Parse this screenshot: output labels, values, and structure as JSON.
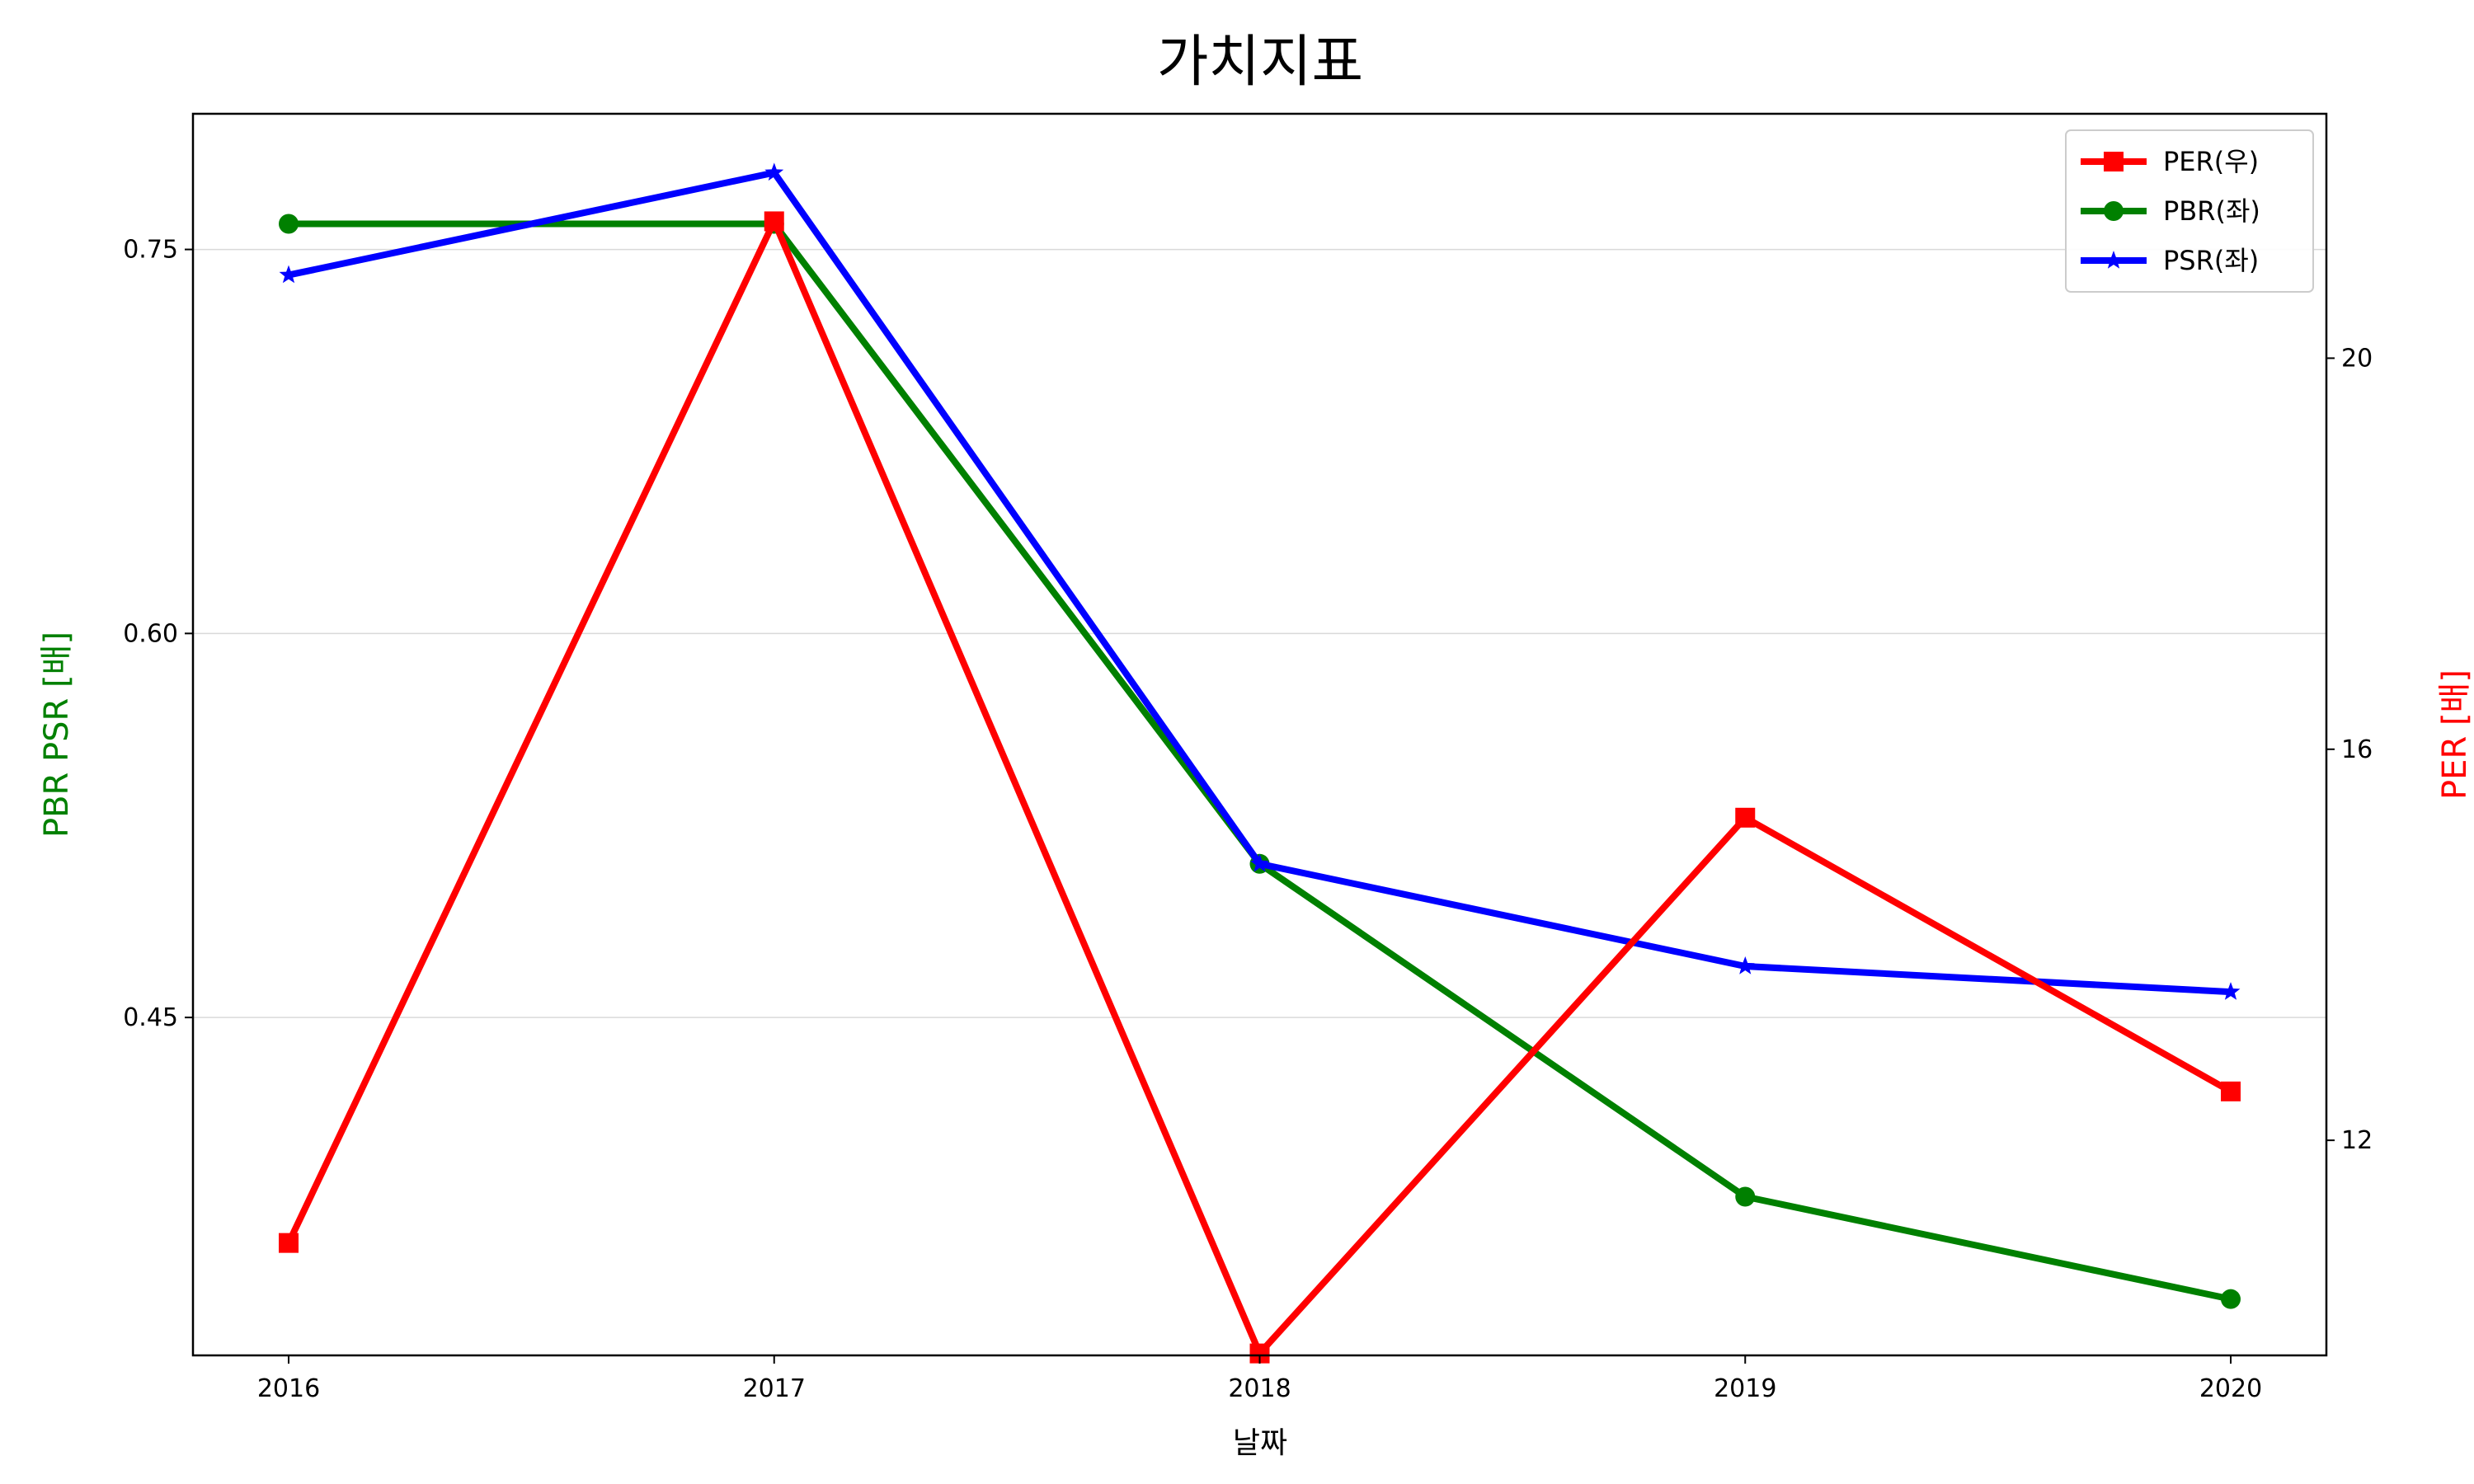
{
  "chart_data": {
    "type": "line",
    "title": "가치지표",
    "xlabel": "날짜",
    "ylabel_left": "PBR PSR [배]",
    "ylabel_right": "PER [배]",
    "categories": [
      "2016",
      "2017",
      "2018",
      "2019",
      "2020"
    ],
    "ylim_left": [
      0.318,
      0.803
    ],
    "yticks_left": [
      0.45,
      0.6,
      0.75
    ],
    "ytick_labels_left": [
      "0.45",
      "0.60",
      "0.75"
    ],
    "ylim_right": [
      9.8,
      22.5
    ],
    "yticks_right": [
      12,
      16,
      20
    ],
    "ytick_labels_right": [
      "12",
      "16",
      "20"
    ],
    "grid": "horizontal (left axis)",
    "legend_position": "top-right",
    "series": [
      {
        "name": "PER(우)",
        "axis": "right",
        "color": "#ff0000",
        "marker": "square",
        "values": [
          10.95,
          21.4,
          9.82,
          15.3,
          12.5
        ]
      },
      {
        "name": "PBR(좌)",
        "axis": "left",
        "color": "#008000",
        "marker": "circle",
        "values": [
          0.76,
          0.76,
          0.51,
          0.38,
          0.34
        ]
      },
      {
        "name": "PSR(좌)",
        "axis": "left",
        "color": "#0000ff",
        "marker": "star",
        "values": [
          0.74,
          0.78,
          0.51,
          0.47,
          0.46
        ]
      }
    ]
  }
}
